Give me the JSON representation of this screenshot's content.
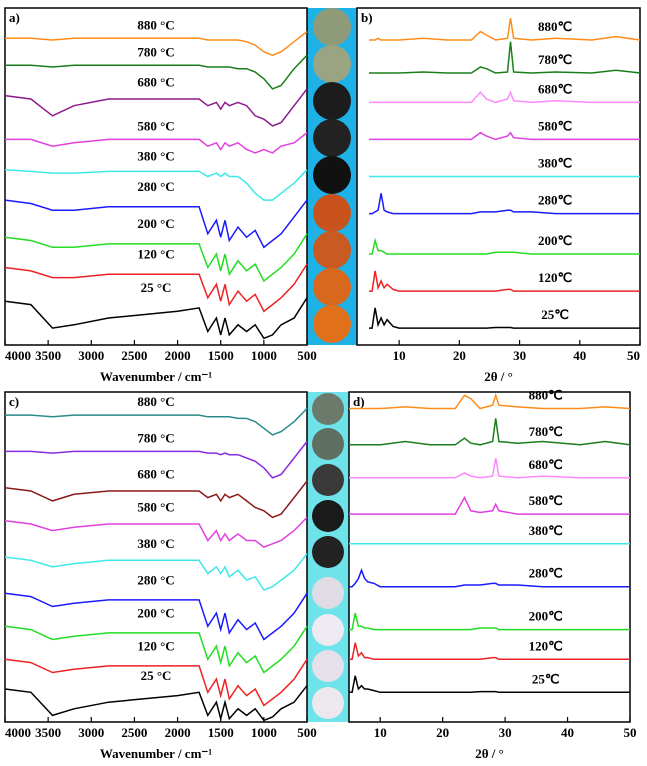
{
  "chart_data": [
    {
      "type": "line",
      "title": "a)",
      "x_label": "Wavenumber / cm⁻¹",
      "x": [
        4000,
        3700,
        3450,
        3200,
        2800,
        2000,
        1750,
        1650,
        1550,
        1500,
        1450,
        1400,
        1300,
        1200,
        1100,
        1000,
        900,
        800,
        650,
        500
      ],
      "xlim": [
        4000,
        500
      ],
      "xticks": [
        4000,
        3500,
        3000,
        2500,
        2000,
        1500,
        1000,
        500
      ],
      "ylim": [
        0,
        100
      ],
      "series": [
        {
          "name": "880 °C",
          "color": "#ff8c1a",
          "values": [
            91,
            91,
            90.5,
            91,
            91,
            91,
            91,
            90.5,
            90.5,
            90.5,
            90.5,
            90.5,
            90.5,
            90,
            89,
            87,
            86,
            87,
            90,
            93
          ]
        },
        {
          "name": "780 °C",
          "color": "#1a7f1a",
          "values": [
            83,
            83,
            82.5,
            83,
            83,
            83,
            83,
            82.5,
            82.5,
            82.5,
            82.5,
            82.5,
            82,
            82,
            81,
            79,
            76,
            77,
            82,
            86
          ]
        },
        {
          "name": "680 °C",
          "color": "#8b1a8b",
          "values": [
            74,
            73,
            68,
            71,
            73,
            73,
            73,
            71,
            72,
            70,
            72,
            71,
            72,
            71,
            68,
            67,
            65,
            66,
            71,
            76
          ]
        },
        {
          "name": "580 °C",
          "color": "#e040e0",
          "values": [
            61,
            61,
            59,
            60,
            61,
            61,
            61,
            59,
            60,
            58,
            60,
            59,
            60,
            58,
            57,
            58,
            57,
            59,
            60,
            63
          ]
        },
        {
          "name": "380 °C",
          "color": "#3ee8e8",
          "values": [
            52,
            51.5,
            51,
            51,
            51.5,
            51.5,
            51.5,
            50,
            51,
            50,
            51,
            50,
            50,
            48,
            45,
            43,
            43,
            45,
            48,
            52
          ]
        },
        {
          "name": "280 °C",
          "color": "#1a1aff",
          "values": [
            43,
            42,
            40,
            40,
            41,
            41,
            41,
            33,
            37,
            32,
            37,
            31,
            35,
            32,
            34,
            29,
            31,
            33,
            38,
            43
          ]
        },
        {
          "name": "200 °C",
          "color": "#22dd22",
          "values": [
            32,
            31,
            29,
            29,
            30,
            30,
            30,
            23,
            27,
            22,
            27,
            21,
            25,
            22,
            24,
            19,
            21,
            23,
            27,
            33
          ]
        },
        {
          "name": "120 °C",
          "color": "#ee2222",
          "values": [
            23,
            22,
            20,
            20,
            21,
            21,
            21,
            14,
            18,
            13,
            18,
            12,
            16,
            13,
            15,
            10,
            12,
            14,
            18,
            24
          ]
        },
        {
          "name": "25 °C",
          "color": "#000000",
          "values": [
            13,
            12,
            5,
            6,
            8,
            10,
            11,
            4,
            8,
            3,
            8,
            3,
            6,
            4,
            6,
            2,
            3,
            6,
            8,
            14
          ]
        }
      ]
    },
    {
      "type": "line",
      "title": "b)",
      "x_label": "2θ / °",
      "x": [
        5,
        5.5,
        6,
        6.5,
        7,
        7.5,
        8,
        9,
        10,
        14,
        18,
        22,
        23.5,
        24.5,
        26,
        28,
        28.5,
        29,
        32,
        36,
        42,
        46,
        50
      ],
      "xlim": [
        3,
        50
      ],
      "xticks": [
        10,
        20,
        30,
        40,
        50
      ],
      "ylim": [
        0,
        100
      ],
      "series": [
        {
          "name": "880℃",
          "color": "#ff8c1a",
          "values": [
            90.5,
            90.5,
            90.5,
            91,
            90.5,
            90.5,
            90.5,
            90.5,
            90.5,
            91,
            90.5,
            90.5,
            93,
            92,
            90.5,
            91,
            97,
            91,
            90.5,
            91,
            90.5,
            91.5,
            90.5
          ]
        },
        {
          "name": "780℃",
          "color": "#1a7f1a",
          "values": [
            80.7,
            80.7,
            80.7,
            80.7,
            80.7,
            80.7,
            80.7,
            80.7,
            80.7,
            81,
            80.7,
            80.7,
            82.5,
            82,
            80.7,
            81,
            90,
            81,
            80.7,
            81,
            80.7,
            81.5,
            80.7
          ]
        },
        {
          "name": "680℃",
          "color": "#ff88ff",
          "values": [
            72,
            72,
            72,
            72,
            72,
            72,
            72,
            72,
            72,
            72,
            72,
            72,
            75,
            73,
            72,
            73,
            75,
            72.5,
            72,
            72.5,
            72,
            72,
            72
          ]
        },
        {
          "name": "580℃",
          "color": "#e040e0",
          "values": [
            61,
            61,
            61,
            61,
            61,
            61,
            61,
            61,
            61,
            61,
            61,
            61,
            63,
            62,
            61,
            62,
            63,
            61.5,
            61,
            61,
            61,
            61,
            61
          ]
        },
        {
          "name": "380℃",
          "color": "#3ee8e8",
          "values": [
            50,
            50,
            50,
            50,
            50,
            50,
            50,
            50,
            50,
            50,
            50,
            50,
            50,
            50,
            50,
            50,
            50,
            50,
            50,
            50,
            50,
            50,
            50
          ]
        },
        {
          "name": "280℃",
          "color": "#1a1aff",
          "values": [
            39,
            39,
            39.5,
            40,
            45,
            40,
            39.5,
            39,
            39,
            39,
            39,
            39,
            39.5,
            39.5,
            39.5,
            40,
            40,
            39.5,
            39.5,
            39,
            39,
            39,
            39
          ]
        },
        {
          "name": "200℃",
          "color": "#22dd22",
          "values": [
            27,
            27,
            31,
            28,
            28,
            27.5,
            27,
            27,
            27,
            27,
            27,
            27,
            27,
            27,
            27.5,
            27.5,
            27.5,
            27.5,
            27,
            27,
            27,
            27,
            27
          ]
        },
        {
          "name": "120℃",
          "color": "#ee2222",
          "values": [
            16,
            16,
            22,
            17,
            19,
            17,
            18,
            16.5,
            16,
            16,
            16,
            16,
            16,
            16,
            16,
            16.5,
            16.5,
            16,
            16,
            16,
            16,
            16,
            16
          ]
        },
        {
          "name": "25℃",
          "color": "#000000",
          "values": [
            5,
            5,
            11,
            6,
            8,
            6,
            7.5,
            5.5,
            5,
            5,
            5,
            5,
            5,
            5,
            5.2,
            5.2,
            5.2,
            5,
            5,
            5,
            5,
            5,
            5
          ]
        }
      ]
    },
    {
      "type": "line",
      "title": "c)",
      "x_label": "Wavenumber / cm⁻¹",
      "x": [
        4000,
        3700,
        3450,
        3200,
        2800,
        2000,
        1750,
        1650,
        1550,
        1500,
        1450,
        1400,
        1300,
        1200,
        1100,
        1000,
        900,
        800,
        650,
        500
      ],
      "xlim": [
        4000,
        500
      ],
      "xticks": [
        4000,
        3500,
        3000,
        2500,
        2000,
        1500,
        1000,
        500
      ],
      "ylim": [
        0,
        100
      ],
      "series": [
        {
          "name": "880 °C",
          "color": "#2a8a8a",
          "values": [
            93,
            93,
            92.5,
            93,
            93,
            93,
            93,
            92.5,
            92.5,
            92.5,
            92.5,
            92.5,
            92,
            92,
            91,
            89,
            87,
            88,
            91,
            95
          ]
        },
        {
          "name": "780 °C",
          "color": "#8a2be2",
          "values": [
            82,
            82,
            81.5,
            82,
            82,
            82,
            82,
            81.5,
            81.5,
            81,
            81.5,
            81,
            81,
            80,
            79,
            77,
            74,
            75,
            80,
            85
          ]
        },
        {
          "name": "680 °C",
          "color": "#8b1a1a",
          "values": [
            71,
            70,
            67,
            69,
            70,
            70,
            70,
            68,
            69,
            67,
            69,
            68,
            69,
            67,
            65,
            64,
            62,
            63,
            68,
            73
          ]
        },
        {
          "name": "580 °C",
          "color": "#e040e0",
          "values": [
            61,
            60,
            58,
            59,
            60,
            60,
            60,
            55,
            58,
            55,
            57,
            55,
            57,
            55,
            55,
            53,
            54,
            55,
            58,
            62
          ]
        },
        {
          "name": "380 °C",
          "color": "#3ee8e8",
          "values": [
            50,
            49,
            47,
            48,
            49,
            49,
            49,
            45,
            47,
            45,
            47,
            44,
            46,
            43,
            44,
            40,
            41,
            43,
            46,
            51
          ]
        },
        {
          "name": "280 °C",
          "color": "#1a1aff",
          "values": [
            39,
            38,
            35,
            36,
            37,
            37,
            37,
            29,
            33,
            28,
            33,
            27,
            31,
            28,
            30,
            25,
            27,
            29,
            33,
            39
          ]
        },
        {
          "name": "200 °C",
          "color": "#22dd22",
          "values": [
            29,
            28,
            25,
            26,
            27,
            27,
            27,
            19,
            23,
            18,
            23,
            17,
            21,
            18,
            20,
            15,
            17,
            19,
            23,
            29
          ]
        },
        {
          "name": "120 °C",
          "color": "#ee2222",
          "values": [
            19,
            18,
            15,
            16,
            17,
            17,
            17,
            9,
            13,
            8,
            13,
            7,
            11,
            8,
            10,
            5,
            7,
            9,
            13,
            19
          ]
        },
        {
          "name": "25 °C",
          "color": "#000000",
          "values": [
            10,
            9,
            2,
            4,
            6,
            8,
            9,
            2,
            6,
            1,
            6,
            1,
            4,
            2,
            4,
            0.5,
            1.5,
            4,
            6,
            11
          ]
        }
      ]
    },
    {
      "type": "line",
      "title": "d)",
      "x_label": "2θ / °",
      "x": [
        5,
        5.5,
        6,
        6.5,
        7,
        7.5,
        8,
        9,
        10,
        14,
        18,
        22,
        23.5,
        24.5,
        26,
        28,
        28.5,
        29,
        32,
        36,
        42,
        46,
        50
      ],
      "xlim": [
        5,
        50
      ],
      "xticks": [
        10,
        20,
        30,
        40,
        50
      ],
      "ylim": [
        0,
        100
      ],
      "series": [
        {
          "name": "880℃",
          "color": "#ff8c1a",
          "values": [
            95,
            95,
            95,
            95,
            95,
            95,
            95,
            95,
            95,
            95.5,
            95,
            95,
            99,
            98,
            95,
            96,
            99,
            96,
            95.5,
            95,
            95,
            95.5,
            95
          ]
        },
        {
          "name": "780℃",
          "color": "#1a7f1a",
          "values": [
            84,
            84,
            84,
            84,
            84,
            84,
            84,
            84,
            84,
            85,
            84,
            84,
            86,
            84.5,
            84,
            85,
            92,
            85,
            84.5,
            85,
            84,
            85,
            84
          ]
        },
        {
          "name": "680℃",
          "color": "#ff88ff",
          "values": [
            74,
            74,
            74,
            74,
            74,
            74,
            74,
            74,
            74,
            74,
            74,
            74,
            75.5,
            74.5,
            74,
            74.5,
            80,
            74.5,
            74,
            74.5,
            74,
            74,
            74
          ]
        },
        {
          "name": "580℃",
          "color": "#e040e0",
          "values": [
            63,
            63,
            63,
            63,
            63,
            63,
            63,
            63,
            63,
            63,
            63,
            63,
            68,
            64,
            63.5,
            64,
            66,
            64,
            63,
            63,
            63,
            63,
            63
          ]
        },
        {
          "name": "380℃",
          "color": "#3ee8e8",
          "values": [
            54,
            54,
            54,
            54,
            54,
            54,
            54,
            54,
            54,
            54,
            54,
            54,
            54,
            54,
            54,
            54,
            54,
            54,
            54,
            54,
            54,
            54,
            54
          ]
        },
        {
          "name": "280℃",
          "color": "#1a1aff",
          "values": [
            41,
            41,
            42,
            43.5,
            46,
            43.5,
            42.5,
            42,
            41,
            41,
            41,
            41,
            41.5,
            41.5,
            41.5,
            42,
            42,
            41.5,
            41.5,
            41,
            41,
            41,
            41
          ]
        },
        {
          "name": "200℃",
          "color": "#22dd22",
          "values": [
            28,
            28,
            33,
            29,
            29,
            28.5,
            28.5,
            28,
            28,
            28,
            28,
            28,
            28,
            28,
            28.5,
            28.5,
            28.5,
            28,
            28,
            28,
            28,
            28,
            28
          ]
        },
        {
          "name": "120℃",
          "color": "#ee2222",
          "values": [
            19,
            19,
            24,
            20,
            21,
            19.5,
            19.5,
            19,
            19,
            19,
            19,
            19,
            19,
            19,
            19,
            19.5,
            19.5,
            19,
            19,
            19,
            19,
            19,
            19
          ]
        },
        {
          "name": "25℃",
          "color": "#000000",
          "values": [
            9,
            9,
            14,
            10,
            11,
            10,
            10,
            9.5,
            9,
            9,
            9,
            9,
            9,
            9,
            9.2,
            9.2,
            9.2,
            9,
            9,
            9,
            9,
            9,
            9
          ]
        }
      ]
    }
  ]
}
